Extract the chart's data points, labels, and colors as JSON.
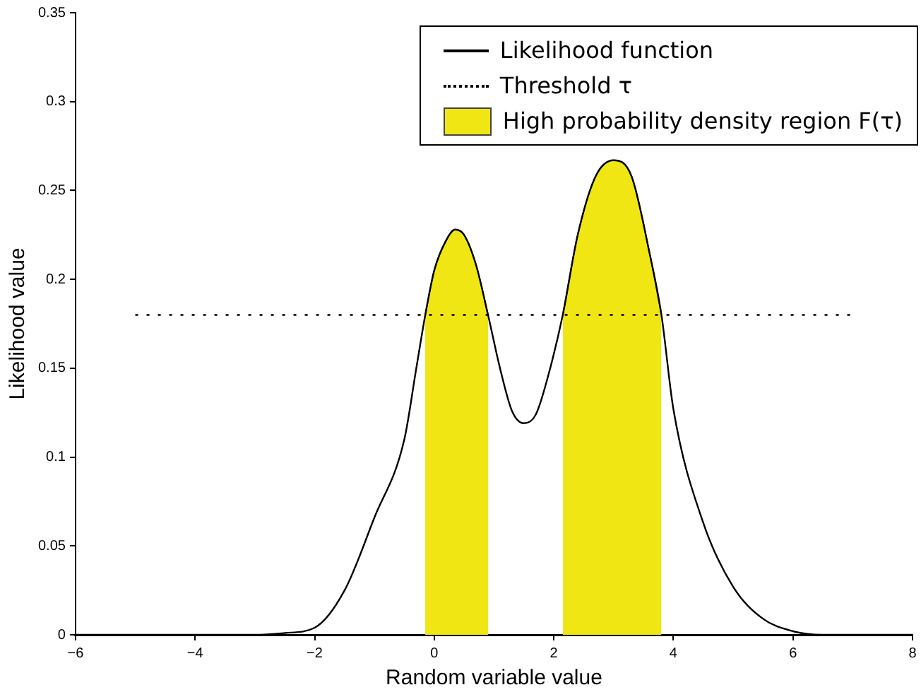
{
  "chart_data": {
    "type": "line",
    "xlabel": "Random variable value",
    "ylabel": "Likelihood value",
    "xlim": [
      -6,
      8
    ],
    "xticks": [
      -6,
      -4,
      -2,
      0,
      2,
      4,
      6,
      8
    ],
    "ylim": [
      0,
      0.35
    ],
    "yticks": [
      0,
      0.05,
      0.1,
      0.15,
      0.2,
      0.25,
      0.3,
      0.35
    ],
    "grid": false,
    "legend": "top right",
    "marker": "none",
    "series": [
      {
        "name": "Likelihood function",
        "color": "#000000",
        "line_style": "solid",
        "x": [
          -6,
          -3,
          -2.5,
          -2,
          -1.5,
          -1,
          -0.5,
          -0.3,
          -0.15,
          0,
          0.2,
          0.35,
          0.5,
          0.7,
          0.9,
          1.1,
          1.3,
          1.5,
          1.7,
          1.9,
          2.15,
          2.4,
          2.7,
          3,
          3.3,
          3.6,
          3.8,
          4,
          4.5,
          5,
          5.5,
          6,
          6.5,
          8
        ],
        "values": [
          0,
          0,
          0.001,
          0.004,
          0.025,
          0.066,
          0.11,
          0.15,
          0.18,
          0.205,
          0.222,
          0.228,
          0.225,
          0.208,
          0.18,
          0.15,
          0.126,
          0.119,
          0.124,
          0.145,
          0.18,
          0.225,
          0.258,
          0.267,
          0.258,
          0.215,
          0.18,
          0.127,
          0.063,
          0.027,
          0.009,
          0.002,
          0,
          0
        ]
      },
      {
        "name": "Threshold τ",
        "color": "#000000",
        "line_style": "dotted",
        "x": [
          -5,
          7
        ],
        "values": [
          0.18,
          0.18
        ]
      },
      {
        "name": "High probability density region F(τ)",
        "type": "area",
        "color": "#f0e614",
        "x": [
          -0.15,
          0,
          0.2,
          0.35,
          0.5,
          0.7,
          0.9,
          1.5,
          2.15,
          2.4,
          2.7,
          3,
          3.3,
          3.6,
          3.8
        ],
        "values": [
          0.18,
          0.205,
          0.222,
          0.228,
          0.225,
          0.208,
          0.18,
          null,
          0.18,
          0.225,
          0.258,
          0.267,
          0.258,
          0.215,
          0.18
        ]
      }
    ]
  }
}
